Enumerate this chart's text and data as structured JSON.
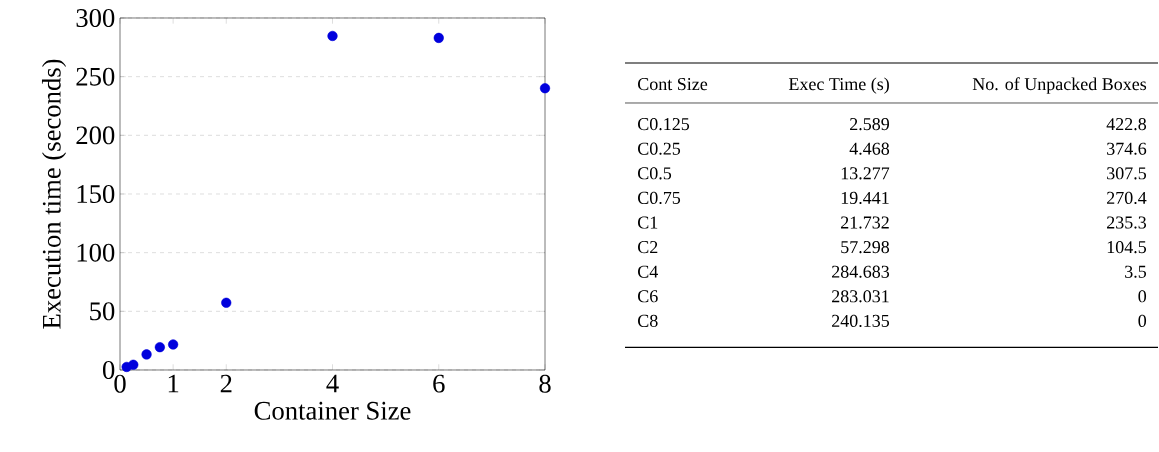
{
  "chart_data": [
    {
      "type": "scatter",
      "xlabel": "Container Size",
      "ylabel": "Execution time (seconds)",
      "x": [
        0.125,
        0.25,
        0.5,
        0.75,
        1,
        2,
        4,
        6,
        8
      ],
      "values": [
        2.589,
        4.468,
        13.277,
        19.441,
        21.732,
        57.298,
        284.683,
        283.031,
        240.135
      ],
      "color": "#0000dd",
      "xlim": [
        0,
        8
      ],
      "xticks": [
        0,
        1,
        2,
        4,
        6,
        8
      ],
      "ylim": [
        0,
        300
      ],
      "yticks": [
        0,
        50,
        100,
        150,
        200,
        250,
        300
      ],
      "grid": "y"
    },
    {
      "type": "other",
      "xlabel": "Cont Size",
      "data_labels": true,
      "categories": [
        "C0.125",
        "C0.25",
        "C0.5",
        "C0.75",
        "C1",
        "C2",
        "C4",
        "C6",
        "C8"
      ],
      "series": [
        {
          "name": "Exec Time (s)",
          "values": [
            2.589,
            4.468,
            13.277,
            19.441,
            21.732,
            57.298,
            284.683,
            283.031,
            240.135
          ]
        },
        {
          "name": "No. of Unpacked Boxes",
          "values": [
            422.8,
            374.6,
            307.5,
            270.4,
            235.3,
            104.5,
            3.5,
            0,
            0
          ]
        }
      ]
    }
  ]
}
